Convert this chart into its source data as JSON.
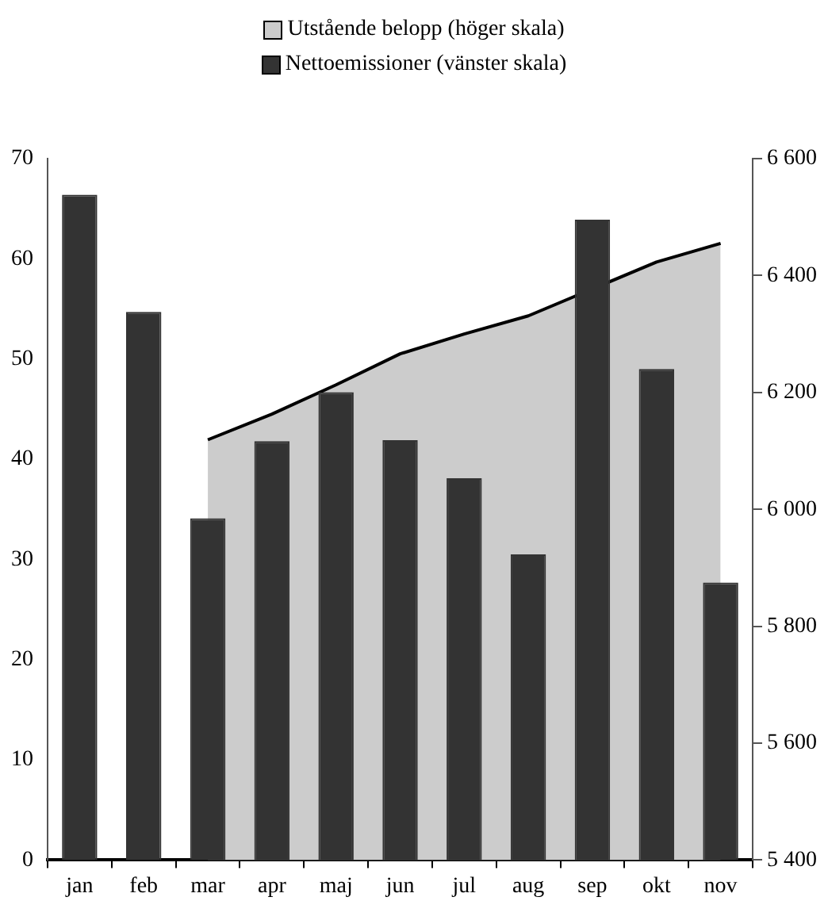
{
  "chart_data": {
    "type": "bar",
    "categories": [
      "jan",
      "feb",
      "mar",
      "apr",
      "maj",
      "jun",
      "jul",
      "aug",
      "sep",
      "okt",
      "nov"
    ],
    "series": [
      {
        "name": "Utstående belopp (höger skala)",
        "type": "area",
        "axis": "y2",
        "color": "#cccccc",
        "values": [
          null,
          null,
          6119,
          6163,
          6213,
          6266,
          6300,
          6331,
          null,
          6423,
          6455
        ]
      },
      {
        "name": "Nettoemissioner (vänster skala)",
        "color": "#333333",
        "values": [
          66.4,
          54.7,
          34.1,
          41.8,
          46.7,
          41.9,
          38.1,
          30.5,
          63.9,
          49.0,
          27.7
        ]
      }
    ],
    "ylim": [
      0,
      70
    ],
    "yticks": [
      0,
      10,
      20,
      30,
      40,
      50,
      60,
      70
    ],
    "y2lim": [
      5400,
      6600
    ],
    "y2ticks": [
      {
        "value": 5400,
        "label": "5 400"
      },
      {
        "value": 5600,
        "label": "5 600"
      },
      {
        "value": 5800,
        "label": "5 800"
      },
      {
        "value": 6000,
        "label": "6 000"
      },
      {
        "value": 6200,
        "label": "6 200"
      },
      {
        "value": 6400,
        "label": "6 400"
      },
      {
        "value": 6600,
        "label": "6 600"
      }
    ],
    "grid": false,
    "legend": "top"
  }
}
